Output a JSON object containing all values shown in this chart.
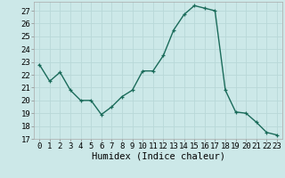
{
  "x": [
    0,
    1,
    2,
    3,
    4,
    5,
    6,
    7,
    8,
    9,
    10,
    11,
    12,
    13,
    14,
    15,
    16,
    17,
    18,
    19,
    20,
    21,
    22,
    23
  ],
  "y": [
    22.8,
    21.5,
    22.2,
    20.8,
    20.0,
    20.0,
    18.9,
    19.5,
    20.3,
    20.8,
    22.3,
    22.3,
    23.5,
    25.5,
    26.7,
    27.4,
    27.2,
    27.0,
    20.8,
    19.1,
    19.0,
    18.3,
    17.5,
    17.3
  ],
  "line_color": "#1a6b5a",
  "marker": "+",
  "bg_color": "#cce8e8",
  "grid_color": "#b8d8d8",
  "xlabel": "Humidex (Indice chaleur)",
  "xlim": [
    -0.5,
    23.5
  ],
  "ylim": [
    17,
    27.7
  ],
  "yticks": [
    17,
    18,
    19,
    20,
    21,
    22,
    23,
    24,
    25,
    26,
    27
  ],
  "xticks": [
    0,
    1,
    2,
    3,
    4,
    5,
    6,
    7,
    8,
    9,
    10,
    11,
    12,
    13,
    14,
    15,
    16,
    17,
    18,
    19,
    20,
    21,
    22,
    23
  ],
  "tick_label_fontsize": 6.5,
  "xlabel_fontsize": 7.5,
  "linewidth": 1.0,
  "markersize": 3.5,
  "markeredgewidth": 0.9
}
